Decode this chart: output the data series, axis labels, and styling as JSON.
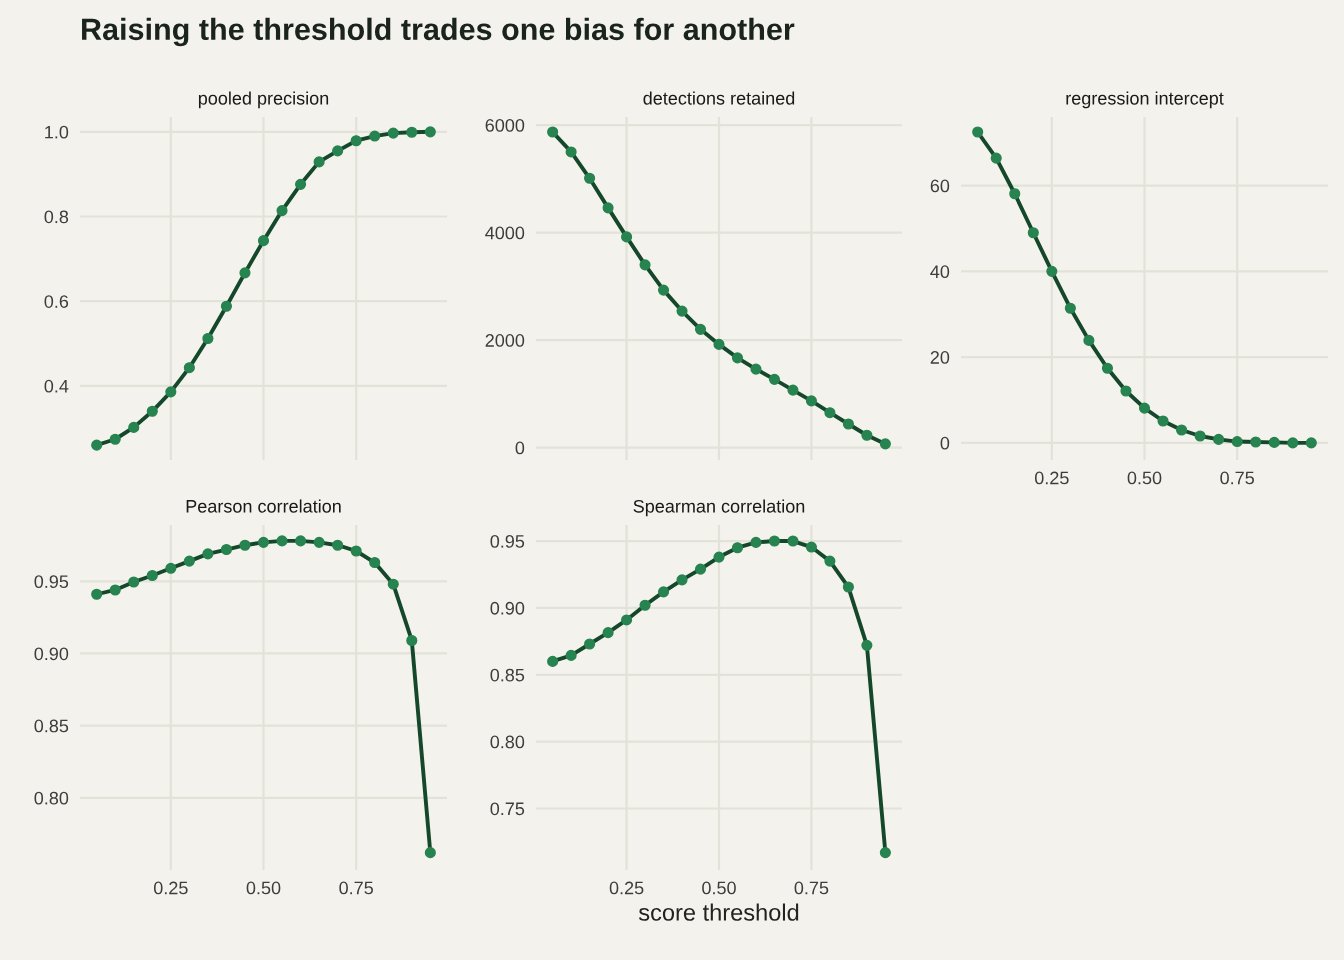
{
  "chart_data": [
    {
      "type": "line",
      "title": "pooled precision",
      "annotations": [
        "Raising the threshold trades one bias for another"
      ],
      "x": [
        0.05,
        0.1,
        0.15,
        0.2,
        0.25,
        0.3,
        0.35,
        0.4,
        0.45,
        0.5,
        0.55,
        0.6,
        0.65,
        0.7,
        0.75,
        0.8,
        0.85,
        0.9,
        0.95
      ],
      "xlim": [
        0.005,
        0.995
      ],
      "xticks": [
        0.25,
        0.5,
        0.75
      ],
      "ylim": [
        0.225,
        1.035
      ],
      "yticks": [
        0.4,
        0.6,
        0.8,
        {
          "value": 1.0,
          "label": "1.0"
        }
      ],
      "tick_labels": "y",
      "grid": true,
      "marker": "circle",
      "line_style": "solid",
      "series": [
        {
          "color": "#27834f",
          "values": [
            0.26,
            0.274,
            0.302,
            0.34,
            0.386,
            0.443,
            0.512,
            0.588,
            0.667,
            0.743,
            0.814,
            0.876,
            0.929,
            0.955,
            0.979,
            0.99,
            0.997,
            0.999,
            1.0
          ]
        }
      ]
    },
    {
      "type": "line",
      "title": "detections retained",
      "x": [
        0.05,
        0.1,
        0.15,
        0.2,
        0.25,
        0.3,
        0.35,
        0.4,
        0.45,
        0.5,
        0.55,
        0.6,
        0.65,
        0.7,
        0.75,
        0.8,
        0.85,
        0.9,
        0.95
      ],
      "xlim": [
        0.005,
        0.995
      ],
      "xticks": [
        0.25,
        0.5,
        0.75
      ],
      "ylim": [
        -230,
        6150
      ],
      "yticks": [
        0,
        2000,
        4000,
        6000
      ],
      "tick_labels": "y",
      "grid": true,
      "marker": "circle",
      "line_style": "solid",
      "series": [
        {
          "color": "#27834f",
          "values": [
            5870,
            5500,
            5010,
            4460,
            3920,
            3400,
            2930,
            2540,
            2200,
            1920,
            1670,
            1460,
            1270,
            1070,
            870,
            650,
            440,
            230,
            70
          ]
        }
      ]
    },
    {
      "type": "line",
      "title": "regression intercept",
      "x": [
        0.05,
        0.1,
        0.15,
        0.2,
        0.25,
        0.3,
        0.35,
        0.4,
        0.45,
        0.5,
        0.55,
        0.6,
        0.65,
        0.7,
        0.75,
        0.8,
        0.85,
        0.9,
        0.95
      ],
      "xlim": [
        0.005,
        0.995
      ],
      "xticks": [
        {
          "value": 0.25,
          "label": "0.25"
        },
        {
          "value": 0.5,
          "label": "0.50"
        },
        {
          "value": 0.75,
          "label": "0.75"
        }
      ],
      "ylim": [
        -4,
        76
      ],
      "yticks": [
        0,
        20,
        40,
        60
      ],
      "grid": true,
      "marker": "circle",
      "line_style": "solid",
      "series": [
        {
          "color": "#27834f",
          "values": [
            72.5,
            66.4,
            58.1,
            49.0,
            40.0,
            31.4,
            23.9,
            17.4,
            12.1,
            8.1,
            5.1,
            3.0,
            1.6,
            0.8,
            0.3,
            0.2,
            0.1,
            0.0,
            0.0
          ]
        }
      ]
    },
    {
      "type": "line",
      "title": "Pearson correlation",
      "x": [
        0.05,
        0.1,
        0.15,
        0.2,
        0.25,
        0.3,
        0.35,
        0.4,
        0.45,
        0.5,
        0.55,
        0.6,
        0.65,
        0.7,
        0.75,
        0.8,
        0.85,
        0.9,
        0.95
      ],
      "xlim": [
        0.005,
        0.995
      ],
      "xticks": [
        {
          "value": 0.25,
          "label": "0.25"
        },
        {
          "value": 0.5,
          "label": "0.50"
        },
        {
          "value": 0.75,
          "label": "0.75"
        }
      ],
      "ylim": [
        0.75,
        0.989
      ],
      "yticks": [
        {
          "value": 0.8,
          "label": "0.80"
        },
        0.85,
        {
          "value": 0.9,
          "label": "0.90"
        },
        0.95
      ],
      "grid": true,
      "marker": "circle",
      "line_style": "solid",
      "series": [
        {
          "color": "#27834f",
          "values": [
            0.941,
            0.944,
            0.9495,
            0.954,
            0.959,
            0.964,
            0.969,
            0.972,
            0.975,
            0.977,
            0.978,
            0.978,
            0.977,
            0.975,
            0.971,
            0.963,
            0.948,
            0.909,
            0.762
          ]
        }
      ]
    },
    {
      "type": "line",
      "title": "Spearman correlation",
      "xlabel": "score threshold",
      "x": [
        0.05,
        0.1,
        0.15,
        0.2,
        0.25,
        0.3,
        0.35,
        0.4,
        0.45,
        0.5,
        0.55,
        0.6,
        0.65,
        0.7,
        0.75,
        0.8,
        0.85,
        0.9,
        0.95
      ],
      "xlim": [
        0.005,
        0.995
      ],
      "xticks": [
        {
          "value": 0.25,
          "label": "0.25"
        },
        {
          "value": 0.5,
          "label": "0.50"
        },
        {
          "value": 0.75,
          "label": "0.75"
        }
      ],
      "ylim": [
        0.704,
        0.962
      ],
      "yticks": [
        0.75,
        {
          "value": 0.8,
          "label": "0.80"
        },
        0.85,
        {
          "value": 0.9,
          "label": "0.90"
        },
        0.95
      ],
      "grid": true,
      "marker": "circle",
      "line_style": "solid",
      "series": [
        {
          "color": "#27834f",
          "values": [
            0.86,
            0.8645,
            0.873,
            0.8815,
            0.891,
            0.902,
            0.912,
            0.921,
            0.929,
            0.938,
            0.945,
            0.949,
            0.95,
            0.95,
            0.9455,
            0.935,
            0.9156,
            0.872,
            0.717
          ]
        }
      ]
    }
  ]
}
